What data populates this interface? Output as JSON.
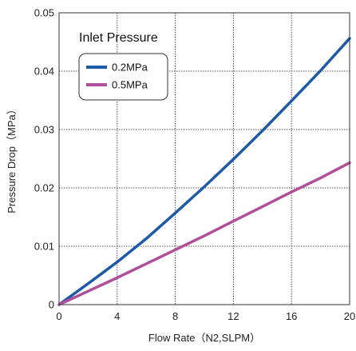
{
  "chart_data": {
    "type": "line",
    "xlabel": "Flow Rate（N2,SLPM）",
    "ylabel": "Pressure Drop（MPa）",
    "xlim": [
      0,
      20
    ],
    "ylim": [
      0,
      0.05
    ],
    "x_ticks": [
      0,
      4,
      8,
      12,
      16,
      20
    ],
    "y_ticks": [
      0,
      0.01,
      0.02,
      0.03,
      0.04,
      0.05
    ],
    "x_tick_labels": [
      "0",
      "4",
      "8",
      "12",
      "16",
      "20"
    ],
    "y_tick_labels": [
      "0",
      "0.01",
      "0.02",
      "0.03",
      "0.04",
      "0.05"
    ],
    "grid": true,
    "legend_title": "Inlet Pressure",
    "legend_position": "top-left",
    "series": [
      {
        "name": "0.2MPa",
        "color": "#1f5aa6",
        "x": [
          0,
          2,
          4,
          6,
          8,
          10,
          12,
          14,
          16,
          18,
          20
        ],
        "y": [
          0,
          0.0036,
          0.0073,
          0.0113,
          0.0157,
          0.0202,
          0.0249,
          0.0298,
          0.0349,
          0.0401,
          0.0456
        ]
      },
      {
        "name": "0.5MPa",
        "color": "#b0509a",
        "x": [
          0,
          2,
          4,
          6,
          8,
          10,
          12,
          14,
          16,
          18,
          20
        ],
        "y": [
          0,
          0.0023,
          0.0046,
          0.007,
          0.0094,
          0.0118,
          0.0143,
          0.0168,
          0.0193,
          0.0217,
          0.0243
        ]
      }
    ]
  }
}
